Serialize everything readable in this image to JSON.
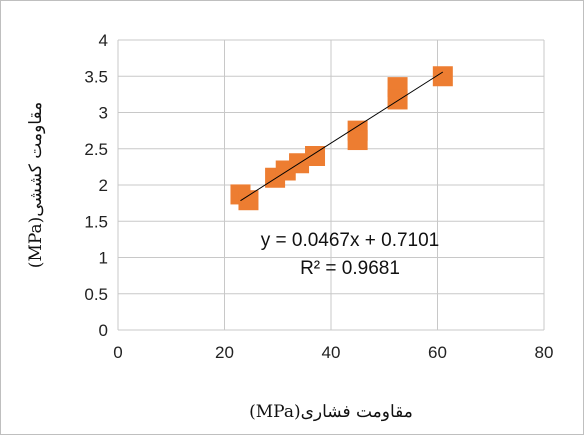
{
  "chart_data": {
    "type": "scatter",
    "xlabel": "مقاومت فشاری(MPa)",
    "ylabel": "مقاومت کششی(MPa)",
    "xlim": [
      0,
      80
    ],
    "ylim": [
      0,
      4
    ],
    "x_ticks": [
      "0",
      "20",
      "40",
      "60",
      "80"
    ],
    "y_ticks": [
      "0",
      "0.5",
      "1",
      "1.5",
      "2",
      "2.5",
      "3",
      "3.5",
      "4"
    ],
    "grid": true,
    "marker_color": "#ED7D31",
    "trendline_color": "#000000",
    "points": [
      {
        "x": 23,
        "y": 1.87
      },
      {
        "x": 24.5,
        "y": 1.79
      },
      {
        "x": 29.5,
        "y": 2.1
      },
      {
        "x": 31.5,
        "y": 2.2
      },
      {
        "x": 34,
        "y": 2.3
      },
      {
        "x": 37,
        "y": 2.4
      },
      {
        "x": 45,
        "y": 2.75
      },
      {
        "x": 45,
        "y": 2.62
      },
      {
        "x": 52.5,
        "y": 3.35
      },
      {
        "x": 52.5,
        "y": 3.18
      },
      {
        "x": 61,
        "y": 3.5
      }
    ],
    "trendline": {
      "slope": 0.0467,
      "intercept": 0.7101,
      "x_start": 23,
      "x_end": 61
    },
    "equation": "y = 0.0467x + 0.7101",
    "r_squared": "R² = 0.9681"
  }
}
